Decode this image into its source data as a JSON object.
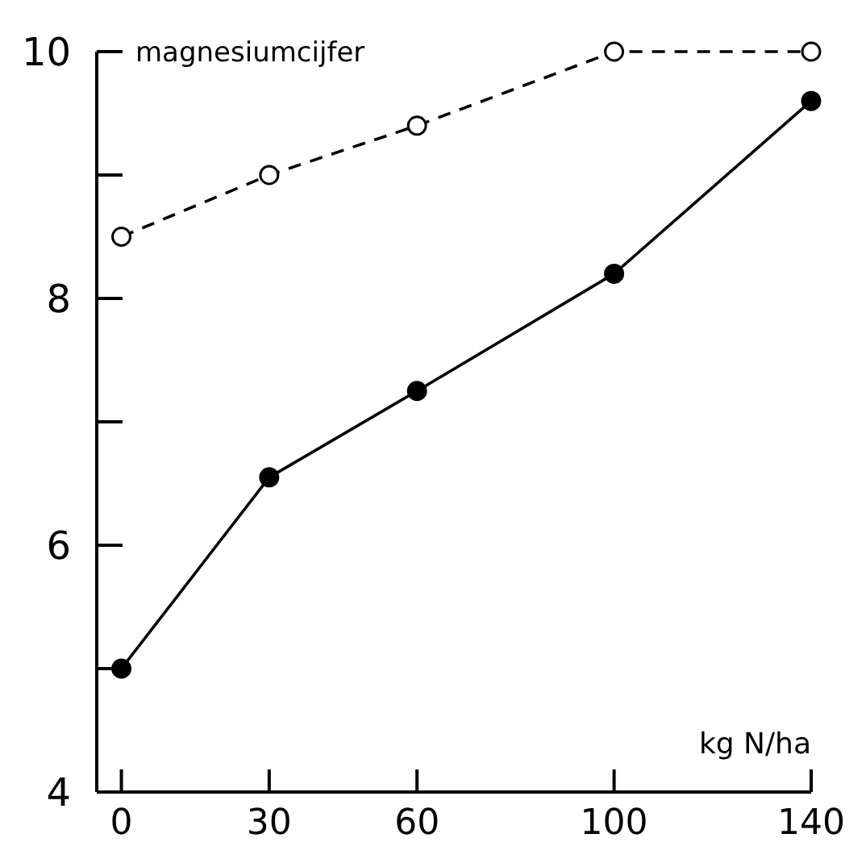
{
  "chart_data": {
    "type": "line",
    "ylabel": "magnesiumcijfer",
    "xlabel": "kg N/ha",
    "x": [
      0,
      30,
      60,
      100,
      140
    ],
    "xlim": [
      -5,
      140
    ],
    "xticks": [
      0,
      30,
      60,
      100,
      140
    ],
    "ylim": [
      4,
      10
    ],
    "yticks": [
      4,
      {
        "value": 5,
        "label": null
      },
      6,
      {
        "value": 7,
        "label": null
      },
      8,
      {
        "value": 9,
        "label": null
      },
      10
    ],
    "series": [
      {
        "color": "#000000",
        "values": [
          8.5,
          9.0,
          9.4,
          10,
          10
        ],
        "line_style": "dashed",
        "marker": "circle"
      },
      {
        "color": "#000000",
        "values": [
          5.0,
          6.55,
          7.25,
          8.2,
          9.6
        ],
        "line_style": "solid",
        "marker": "circle"
      }
    ],
    "grid": false
  }
}
